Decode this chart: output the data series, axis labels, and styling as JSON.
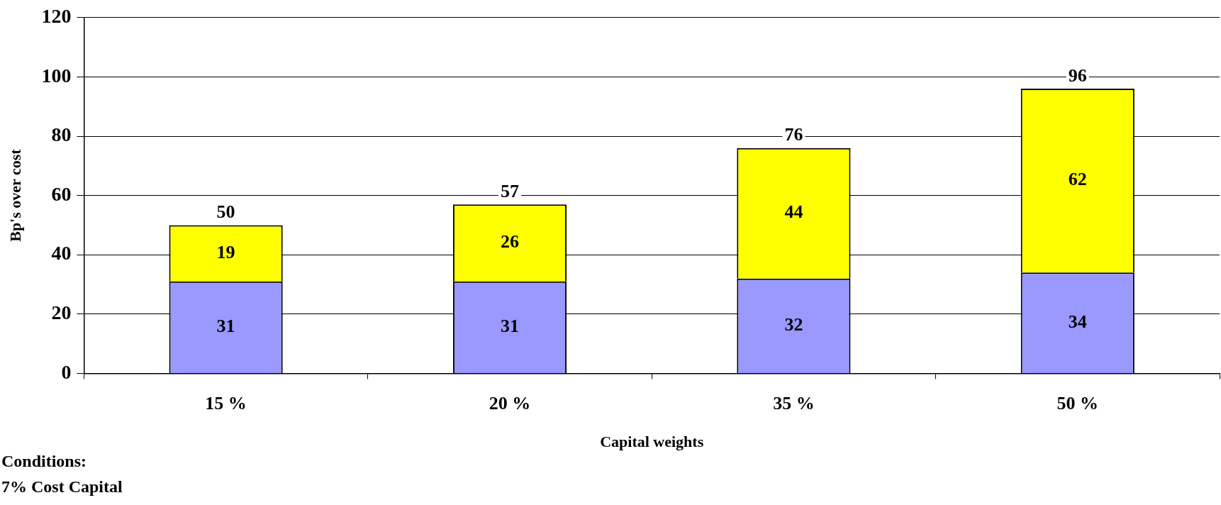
{
  "chart_data": {
    "type": "bar",
    "xlabel": "Capital weights",
    "ylabel": "Bp's over cost",
    "categories": [
      "15 %",
      "20 %",
      "35 %",
      "50 %"
    ],
    "series": [
      {
        "color": "#9999ff",
        "values": [
          31,
          31,
          32,
          34
        ]
      },
      {
        "color": "#ffff00",
        "values": [
          19,
          26,
          44,
          62
        ]
      }
    ],
    "stacked": true,
    "data_labels": true,
    "totals": [
      "50",
      "57",
      "76",
      "96"
    ],
    "ylim": [
      0,
      120
    ],
    "yticks": [
      0,
      20,
      40,
      60,
      80,
      100,
      120
    ],
    "grid": "y",
    "legend": false,
    "annotations": [
      "Conditions:",
      "7% Cost Capital"
    ]
  }
}
